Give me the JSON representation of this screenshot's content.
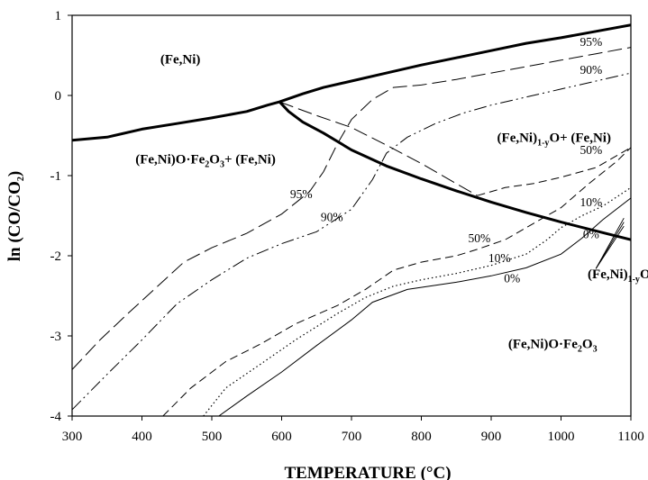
{
  "chart_data": {
    "type": "line",
    "title": "",
    "xlabel": "TEMPERATURE (°C)",
    "ylabel": "ln (CO/CO₂)",
    "xlim": [
      300,
      1100
    ],
    "ylim": [
      -4,
      1
    ],
    "xticks": [
      300,
      400,
      500,
      600,
      700,
      800,
      900,
      1000,
      1100
    ],
    "yticks": [
      1,
      0,
      -1,
      -2,
      -3,
      -4
    ],
    "grid": false,
    "legend": "none",
    "boundaries": [
      {
        "style": "solid-thick",
        "points": [
          [
            300,
            -0.56
          ],
          [
            350,
            -0.52
          ],
          [
            400,
            -0.42
          ],
          [
            450,
            -0.35
          ],
          [
            500,
            -0.28
          ],
          [
            550,
            -0.2
          ],
          [
            580,
            -0.12
          ],
          [
            597,
            -0.08
          ],
          [
            630,
            0.02
          ],
          [
            660,
            0.1
          ],
          [
            700,
            0.18
          ],
          [
            750,
            0.28
          ],
          [
            800,
            0.38
          ],
          [
            850,
            0.47
          ],
          [
            900,
            0.56
          ],
          [
            950,
            0.65
          ],
          [
            1000,
            0.72
          ],
          [
            1050,
            0.8
          ],
          [
            1100,
            0.88
          ]
        ]
      },
      {
        "style": "solid-thick",
        "points": [
          [
            597,
            -0.08
          ],
          [
            610,
            -0.2
          ],
          [
            630,
            -0.33
          ],
          [
            660,
            -0.47
          ],
          [
            700,
            -0.68
          ],
          [
            750,
            -0.88
          ],
          [
            800,
            -1.04
          ],
          [
            850,
            -1.19
          ],
          [
            900,
            -1.33
          ],
          [
            950,
            -1.46
          ],
          [
            1000,
            -1.58
          ],
          [
            1050,
            -1.69
          ],
          [
            1100,
            -1.8
          ]
        ]
      }
    ],
    "series": [
      {
        "name": "95%",
        "style": "long-dash",
        "points": [
          [
            300,
            -3.42
          ],
          [
            340,
            -3.05
          ],
          [
            380,
            -2.72
          ],
          [
            420,
            -2.4
          ],
          [
            460,
            -2.08
          ],
          [
            500,
            -1.9
          ],
          [
            550,
            -1.72
          ],
          [
            600,
            -1.48
          ],
          [
            640,
            -1.2
          ],
          [
            660,
            -0.95
          ],
          [
            680,
            -0.6
          ],
          [
            700,
            -0.3
          ],
          [
            730,
            -0.05
          ],
          [
            760,
            0.1
          ],
          [
            800,
            0.13
          ],
          [
            850,
            0.2
          ],
          [
            900,
            0.28
          ],
          [
            950,
            0.36
          ],
          [
            1000,
            0.44
          ],
          [
            1050,
            0.52
          ],
          [
            1100,
            0.6
          ]
        ]
      },
      {
        "name": "90%",
        "style": "dash-dot-dot",
        "points": [
          [
            300,
            -3.92
          ],
          [
            350,
            -3.48
          ],
          [
            400,
            -3.05
          ],
          [
            450,
            -2.6
          ],
          [
            500,
            -2.3
          ],
          [
            550,
            -2.03
          ],
          [
            600,
            -1.85
          ],
          [
            650,
            -1.7
          ],
          [
            700,
            -1.42
          ],
          [
            730,
            -1.05
          ],
          [
            750,
            -0.72
          ],
          [
            780,
            -0.52
          ],
          [
            820,
            -0.35
          ],
          [
            860,
            -0.22
          ],
          [
            900,
            -0.12
          ],
          [
            950,
            -0.02
          ],
          [
            1000,
            0.08
          ],
          [
            1050,
            0.18
          ],
          [
            1100,
            0.28
          ]
        ]
      },
      {
        "name": "95% (lower)",
        "style": "long-dash",
        "points": [
          [
            597,
            -0.08
          ],
          [
            650,
            -0.25
          ],
          [
            700,
            -0.4
          ],
          [
            750,
            -0.62
          ],
          [
            800,
            -0.85
          ],
          [
            850,
            -1.1
          ],
          [
            880,
            -1.25
          ]
        ]
      },
      {
        "name": "50%",
        "style": "medium-dash",
        "points": [
          [
            430,
            -4.0
          ],
          [
            470,
            -3.65
          ],
          [
            520,
            -3.32
          ],
          [
            570,
            -3.1
          ],
          [
            620,
            -2.85
          ],
          [
            680,
            -2.62
          ],
          [
            720,
            -2.42
          ],
          [
            760,
            -2.18
          ],
          [
            800,
            -2.08
          ],
          [
            850,
            -2.0
          ],
          [
            880,
            -1.92
          ],
          [
            920,
            -1.8
          ],
          [
            960,
            -1.6
          ],
          [
            1000,
            -1.4
          ],
          [
            1040,
            -1.1
          ],
          [
            1080,
            -0.82
          ],
          [
            1100,
            -0.65
          ]
        ]
      },
      {
        "name": "50% (upper)",
        "style": "medium-dash",
        "points": [
          [
            880,
            -1.25
          ],
          [
            920,
            -1.15
          ],
          [
            960,
            -1.1
          ],
          [
            1000,
            -1.02
          ],
          [
            1050,
            -0.9
          ],
          [
            1100,
            -0.65
          ]
        ]
      },
      {
        "name": "10%",
        "style": "dotted",
        "points": [
          [
            488,
            -4.0
          ],
          [
            520,
            -3.65
          ],
          [
            570,
            -3.35
          ],
          [
            620,
            -3.05
          ],
          [
            680,
            -2.72
          ],
          [
            720,
            -2.52
          ],
          [
            760,
            -2.38
          ],
          [
            800,
            -2.3
          ],
          [
            850,
            -2.22
          ],
          [
            900,
            -2.12
          ],
          [
            950,
            -1.98
          ],
          [
            980,
            -1.8
          ],
          [
            1000,
            -1.65
          ],
          [
            1030,
            -1.5
          ],
          [
            1060,
            -1.38
          ],
          [
            1100,
            -1.15
          ]
        ]
      },
      {
        "name": "0%",
        "style": "thin-solid",
        "points": [
          [
            510,
            -4.0
          ],
          [
            550,
            -3.75
          ],
          [
            600,
            -3.45
          ],
          [
            650,
            -3.12
          ],
          [
            700,
            -2.8
          ],
          [
            730,
            -2.58
          ],
          [
            780,
            -2.42
          ],
          [
            850,
            -2.33
          ],
          [
            900,
            -2.25
          ],
          [
            950,
            -2.15
          ],
          [
            1000,
            -1.98
          ],
          [
            1030,
            -1.78
          ],
          [
            1060,
            -1.55
          ],
          [
            1100,
            -1.28
          ]
        ]
      }
    ],
    "annotations": [
      {
        "text": "95%",
        "x": 1043,
        "y": 0.62
      },
      {
        "text": "90%",
        "x": 1043,
        "y": 0.27
      },
      {
        "text": "95%",
        "x": 628,
        "y": -1.28
      },
      {
        "text": "90%",
        "x": 672,
        "y": -1.57
      },
      {
        "text": "50%",
        "x": 1043,
        "y": -0.73
      },
      {
        "text": "10%",
        "x": 1043,
        "y": -1.38
      },
      {
        "text": "0%",
        "x": 1043,
        "y": -1.78
      },
      {
        "text": "50%",
        "x": 883,
        "y": -1.83
      },
      {
        "text": "10%",
        "x": 912,
        "y": -2.08
      },
      {
        "text": "0%",
        "x": 930,
        "y": -2.33
      }
    ],
    "region_labels": [
      {
        "key": "fe_ni",
        "text": "(Fe,Ni)",
        "x": 455,
        "y": 0.4
      },
      {
        "key": "left",
        "text": "(Fe,Ni)O·Fe2O3+ (Fe,Ni)",
        "x": 491,
        "y": -0.85
      },
      {
        "key": "mid",
        "text": "(Fe,Ni)1-yO+ (Fe,Ni)",
        "x": 990,
        "y": -0.58
      },
      {
        "key": "lower",
        "text": "(Fe,Ni)O·Fe2O3",
        "x": 988,
        "y": -3.15
      },
      {
        "key": "wus",
        "text": "(Fe,Ni)1-yO",
        "x": 1083,
        "y": -2.28
      }
    ]
  }
}
